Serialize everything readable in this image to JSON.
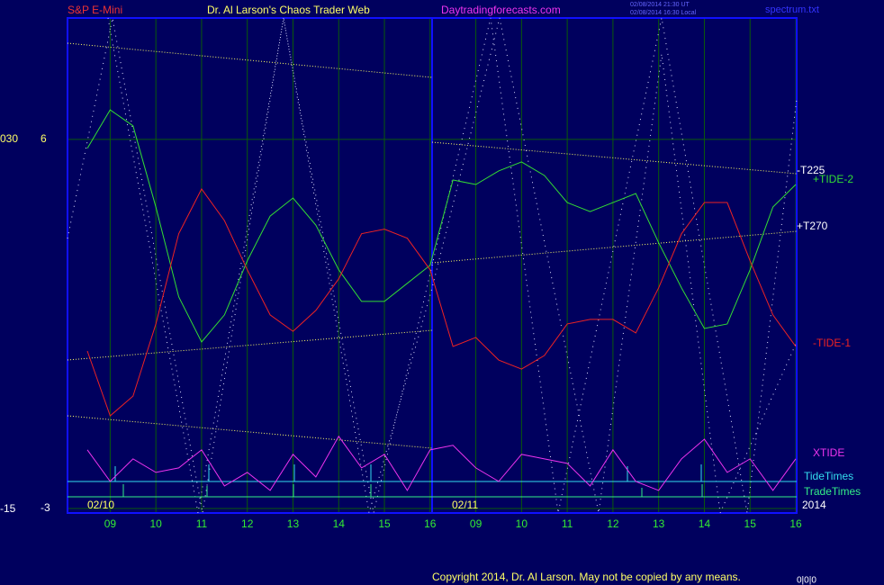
{
  "chart_data": {
    "type": "line",
    "header": {
      "symbol": "S&P E-Mini",
      "title": "Dr. Al Larson's Chaos Trader Web",
      "site": "Daytradingforecasts.com",
      "stamp_ut": "02/08/2014 21:30 UT",
      "stamp_local": "02/08/2014 16:30 Local",
      "file": "spectrum.txt"
    },
    "categories": [
      null,
      "09",
      null,
      "10",
      null,
      "11",
      null,
      "12",
      null,
      "13",
      null,
      "14",
      null,
      "15",
      null,
      "16",
      null,
      "09",
      null,
      "10",
      null,
      "11",
      null,
      "12",
      null,
      "13",
      null,
      "14",
      null,
      "15",
      null,
      "16"
    ],
    "dates": [
      "02/10",
      "02/11"
    ],
    "year": "2014",
    "ylim": [
      -3.11,
      8.96
    ],
    "yticks": [
      6,
      -3
    ],
    "secondary_labels": [
      "030",
      "-15"
    ],
    "grid": true,
    "series": [
      {
        "name": "+TIDE-2",
        "color": "#33dd33",
        "values": [
          5.78,
          6.72,
          6.33,
          4.35,
          2.16,
          1.06,
          1.72,
          3.04,
          4.13,
          4.57,
          3.91,
          2.82,
          2.05,
          2.05,
          2.49,
          2.93,
          5.01,
          4.9,
          5.23,
          5.45,
          5.12,
          4.46,
          4.24,
          4.46,
          4.68,
          3.48,
          2.38,
          1.39,
          1.5,
          2.82,
          4.35,
          4.9
        ]
      },
      {
        "name": "-TIDE-1",
        "color": "#ee2222",
        "values": [
          0.84,
          -0.74,
          -0.26,
          1.5,
          3.7,
          4.79,
          4.02,
          2.82,
          1.72,
          1.32,
          1.83,
          2.6,
          3.7,
          3.81,
          3.59,
          2.82,
          0.95,
          1.17,
          0.62,
          0.4,
          0.73,
          1.5,
          1.61,
          1.61,
          1.28,
          2.38,
          3.7,
          4.46,
          4.46,
          3.04,
          1.72,
          0.95
        ]
      },
      {
        "name": "XTIDE",
        "color": "#ee33ee",
        "values": [
          -1.57,
          -2.34,
          -1.79,
          -2.12,
          -2.01,
          -1.57,
          -2.45,
          -2.12,
          -2.56,
          -1.68,
          -2.23,
          -1.24,
          -2.01,
          -1.68,
          -2.56,
          -1.57,
          -1.46,
          -2.01,
          -2.34,
          -1.68,
          -1.79,
          -1.9,
          -2.45,
          -1.57,
          -2.34,
          -2.56,
          -1.79,
          -1.31,
          -2.12,
          -1.79,
          -2.56,
          -1.79
        ]
      }
    ],
    "line_labels": [
      "-T225",
      "+T270"
    ],
    "time_rows": [
      {
        "name": "TideTimes",
        "color": "#33ddee"
      },
      {
        "name": "TradeTimes",
        "color": "#33ee88"
      }
    ],
    "copyright": "Copyright 2014, Dr. Al Larson. May not be copied by any means.",
    "corner": "0|0|0"
  }
}
